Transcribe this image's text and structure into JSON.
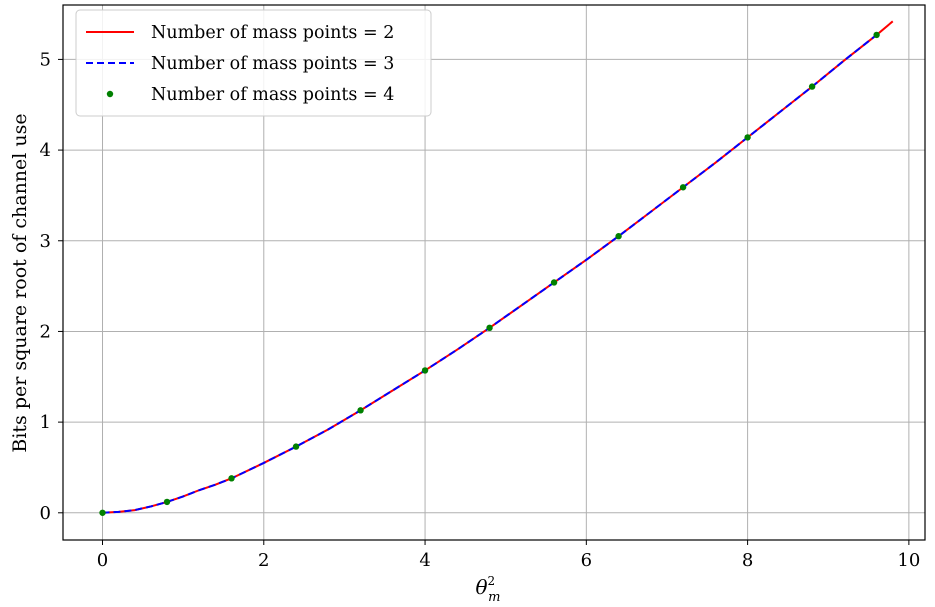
{
  "chart_data": {
    "type": "line",
    "title": "",
    "xlabel": "θ",
    "xlabel_sup": "2",
    "xlabel_sub": "m",
    "ylabel": "Bits per square root of channel use",
    "xlim": [
      -0.49,
      10.2
    ],
    "ylim": [
      -0.3,
      5.6
    ],
    "xticks": [
      0,
      2,
      4,
      6,
      8,
      10
    ],
    "yticks": [
      0,
      1,
      2,
      3,
      4,
      5
    ],
    "grid": true,
    "legend_position": "top-left",
    "series": [
      {
        "name": "Number of mass points = 2",
        "style": "solid",
        "color": "#ff0000",
        "x": [
          0,
          0.2,
          0.4,
          0.6,
          0.8,
          1.0,
          1.2,
          1.4,
          1.6,
          2.0,
          2.4,
          2.8,
          3.2,
          3.6,
          4.0,
          4.4,
          4.8,
          5.2,
          5.6,
          6.0,
          6.4,
          6.8,
          7.2,
          7.6,
          8.0,
          8.4,
          8.8,
          9.2,
          9.6,
          9.8
        ],
        "y": [
          0,
          0.01,
          0.03,
          0.07,
          0.12,
          0.18,
          0.25,
          0.31,
          0.38,
          0.55,
          0.73,
          0.92,
          1.13,
          1.35,
          1.57,
          1.8,
          2.04,
          2.29,
          2.54,
          2.79,
          3.05,
          3.32,
          3.59,
          3.86,
          4.14,
          4.42,
          4.7,
          4.99,
          5.27,
          5.42
        ]
      },
      {
        "name": "Number of mass points = 3",
        "style": "dashed",
        "color": "#0000ff",
        "x": [
          0,
          0.2,
          0.4,
          0.6,
          0.8,
          1.0,
          1.2,
          1.4,
          1.6,
          2.0,
          2.4,
          2.8,
          3.2,
          3.6,
          4.0,
          4.4,
          4.8,
          5.2,
          5.6,
          6.0,
          6.4,
          6.8,
          7.2,
          7.6,
          8.0,
          8.4,
          8.8,
          9.2,
          9.6
        ],
        "y": [
          0,
          0.01,
          0.03,
          0.07,
          0.12,
          0.18,
          0.25,
          0.31,
          0.38,
          0.55,
          0.73,
          0.92,
          1.13,
          1.35,
          1.57,
          1.8,
          2.04,
          2.29,
          2.54,
          2.79,
          3.05,
          3.32,
          3.59,
          3.86,
          4.14,
          4.42,
          4.7,
          4.99,
          5.27
        ]
      },
      {
        "name": "Number of mass points = 4",
        "style": "markers",
        "color": "#008000",
        "x": [
          0,
          0.8,
          1.6,
          2.4,
          3.2,
          4.0,
          4.8,
          5.6,
          6.4,
          7.2,
          8.0,
          8.8,
          9.6
        ],
        "y": [
          0,
          0.12,
          0.38,
          0.73,
          1.13,
          1.57,
          2.04,
          2.54,
          3.05,
          3.59,
          4.14,
          4.7,
          5.27
        ]
      }
    ]
  }
}
